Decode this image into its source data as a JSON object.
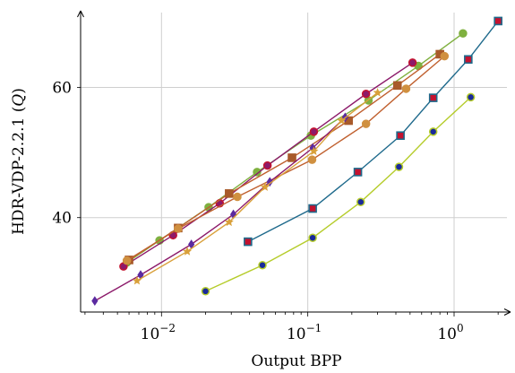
{
  "chart_data": {
    "type": "line",
    "xlabel": "Output BPP",
    "ylabel": "HDR-VDP-2.2.1 (Q)",
    "xscale": "log",
    "xlim": [
      0.0028,
      2.5
    ],
    "ylim": [
      25.5,
      71.5
    ],
    "grid": true,
    "x_ticks": [
      {
        "value": 0.01,
        "base": "10",
        "exp": "−2"
      },
      {
        "value": 0.1,
        "base": "10",
        "exp": "−1"
      },
      {
        "value": 1,
        "base": "10",
        "exp": "0"
      }
    ],
    "y_ticks": [
      {
        "value": 40,
        "label": "40"
      },
      {
        "value": 60,
        "label": "60"
      }
    ],
    "series": [
      {
        "color": "#1f6a8c",
        "marker": "square",
        "marker_fill": "#c4122f",
        "marker_stroke": "#1f6a8c",
        "points": [
          [
            0.039,
            36.3
          ],
          [
            0.108,
            41.4
          ],
          [
            0.22,
            47.0
          ],
          [
            0.43,
            52.6
          ],
          [
            0.72,
            58.4
          ],
          [
            1.25,
            64.3
          ],
          [
            2.0,
            70.2
          ]
        ]
      },
      {
        "color": "#b5cc2a",
        "marker": "circle",
        "marker_fill": "#1a2a9a",
        "marker_stroke": "#b5cc2a",
        "points": [
          [
            0.02,
            28.7
          ],
          [
            0.049,
            32.7
          ],
          [
            0.108,
            36.9
          ],
          [
            0.23,
            42.4
          ],
          [
            0.42,
            47.8
          ],
          [
            0.72,
            53.2
          ],
          [
            1.3,
            58.5
          ]
        ]
      },
      {
        "color": "#7fb03f",
        "marker": "circle",
        "marker_fill": "#7fb03f",
        "marker_stroke": "#7fb03f",
        "points": [
          [
            0.0058,
            33.1
          ],
          [
            0.0097,
            36.5
          ],
          [
            0.021,
            41.6
          ],
          [
            0.045,
            47.0
          ],
          [
            0.105,
            52.6
          ],
          [
            0.26,
            58.0
          ],
          [
            0.57,
            63.3
          ],
          [
            1.15,
            68.3
          ]
        ]
      },
      {
        "color": "#8c1a6a",
        "marker": "circle",
        "marker_fill": "#8c1a6a",
        "marker_stroke": "#c4122f",
        "points": [
          [
            0.0055,
            32.5
          ],
          [
            0.012,
            37.3
          ],
          [
            0.025,
            42.2
          ],
          [
            0.053,
            48.0
          ],
          [
            0.11,
            53.2
          ],
          [
            0.25,
            59.0
          ],
          [
            0.52,
            63.8
          ]
        ]
      },
      {
        "color": "#c0602f",
        "marker": "square",
        "marker_fill": "#a85a2a",
        "marker_stroke": "#a85a2a",
        "points": [
          [
            0.006,
            33.5
          ],
          [
            0.013,
            38.4
          ],
          [
            0.029,
            43.7
          ],
          [
            0.078,
            49.2
          ],
          [
            0.19,
            54.9
          ],
          [
            0.41,
            60.3
          ],
          [
            0.8,
            65.1
          ]
        ]
      },
      {
        "color": "#c0602f",
        "marker": "circle",
        "marker_fill": "#d09040",
        "marker_stroke": "#d09040",
        "points": [
          [
            0.0058,
            33.4
          ],
          [
            0.013,
            38.3
          ],
          [
            0.033,
            43.2
          ],
          [
            0.107,
            48.9
          ],
          [
            0.25,
            54.4
          ],
          [
            0.47,
            59.8
          ],
          [
            0.86,
            64.8
          ]
        ]
      },
      {
        "color": "#8c1a6a",
        "marker": "diamond",
        "marker_fill": "#5b2aa0",
        "marker_stroke": "#5b2aa0",
        "points": [
          [
            0.0035,
            27.2
          ],
          [
            0.0072,
            31.2
          ],
          [
            0.016,
            35.9
          ],
          [
            0.031,
            40.5
          ],
          [
            0.055,
            45.5
          ],
          [
            0.108,
            50.7
          ],
          [
            0.18,
            55.4
          ]
        ]
      },
      {
        "color": "#d9a03a",
        "marker": "star",
        "marker_fill": "#d9a03a",
        "marker_stroke": "#d9a03a",
        "points": [
          [
            0.0068,
            30.3
          ],
          [
            0.015,
            34.8
          ],
          [
            0.029,
            39.3
          ],
          [
            0.051,
            44.7
          ],
          [
            0.11,
            50.2
          ],
          [
            0.17,
            54.9
          ],
          [
            0.3,
            59.2
          ]
        ]
      }
    ]
  }
}
